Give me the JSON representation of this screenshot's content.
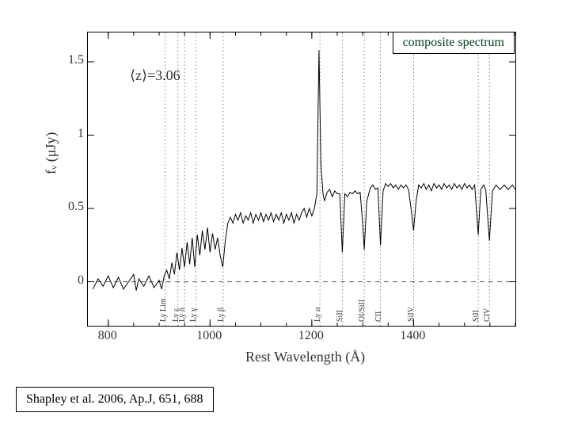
{
  "chart": {
    "type": "line",
    "title_box": "composite spectrum",
    "title_color": "#003e1f",
    "z_annotation": "⟨z⟩=3.06",
    "xlabel": "Rest Wavelength (Å)",
    "ylabel": "fᵥ  (μJy)",
    "xlim": [
      760,
      1600
    ],
    "ylim": [
      -0.3,
      1.7
    ],
    "xticks": [
      800,
      1000,
      1200,
      1400
    ],
    "yticks": [
      0,
      0.5,
      1,
      1.5
    ],
    "spectrum_color": "#000000",
    "grid_dashed_color": "#555555",
    "lineid_color": "#666666",
    "background_color": "#ffffff",
    "line_width": 1.0,
    "spectral_lines": [
      {
        "name": "Ly Lim",
        "x": 912
      },
      {
        "name": "Ly ε",
        "x": 937
      },
      {
        "name": "Ly δ",
        "x": 950
      },
      {
        "name": "Ly γ",
        "x": 972
      },
      {
        "name": "Ly β",
        "x": 1026
      },
      {
        "name": "Ly α",
        "x": 1216
      },
      {
        "name": "SiII",
        "x": 1260
      },
      {
        "name": "OI/SiII",
        "x": 1303
      },
      {
        "name": "CII",
        "x": 1335
      },
      {
        "name": "SiIV",
        "x": 1400
      },
      {
        "name": "SiII",
        "x": 1527
      },
      {
        "name": "CIV",
        "x": 1549
      }
    ],
    "spectrum": [
      [
        770,
        -0.05
      ],
      [
        780,
        0.02
      ],
      [
        790,
        -0.03
      ],
      [
        800,
        0.04
      ],
      [
        810,
        -0.04
      ],
      [
        820,
        0.03
      ],
      [
        830,
        -0.05
      ],
      [
        840,
        0.0
      ],
      [
        850,
        0.05
      ],
      [
        855,
        -0.06
      ],
      [
        860,
        0.02
      ],
      [
        870,
        -0.03
      ],
      [
        880,
        0.04
      ],
      [
        890,
        -0.04
      ],
      [
        900,
        0.01
      ],
      [
        905,
        -0.05
      ],
      [
        910,
        0.04
      ],
      [
        915,
        0.08
      ],
      [
        920,
        0.02
      ],
      [
        925,
        0.13
      ],
      [
        930,
        0.05
      ],
      [
        935,
        0.2
      ],
      [
        940,
        0.08
      ],
      [
        945,
        0.23
      ],
      [
        950,
        0.1
      ],
      [
        955,
        0.27
      ],
      [
        960,
        0.12
      ],
      [
        965,
        0.3
      ],
      [
        970,
        0.1
      ],
      [
        975,
        0.32
      ],
      [
        980,
        0.18
      ],
      [
        985,
        0.35
      ],
      [
        990,
        0.22
      ],
      [
        995,
        0.37
      ],
      [
        1000,
        0.2
      ],
      [
        1005,
        0.33
      ],
      [
        1010,
        0.22
      ],
      [
        1015,
        0.3
      ],
      [
        1020,
        0.18
      ],
      [
        1025,
        0.1
      ],
      [
        1030,
        0.28
      ],
      [
        1035,
        0.4
      ],
      [
        1040,
        0.44
      ],
      [
        1045,
        0.4
      ],
      [
        1050,
        0.46
      ],
      [
        1055,
        0.42
      ],
      [
        1060,
        0.47
      ],
      [
        1065,
        0.4
      ],
      [
        1070,
        0.45
      ],
      [
        1075,
        0.42
      ],
      [
        1080,
        0.47
      ],
      [
        1085,
        0.4
      ],
      [
        1090,
        0.46
      ],
      [
        1095,
        0.42
      ],
      [
        1100,
        0.47
      ],
      [
        1105,
        0.41
      ],
      [
        1110,
        0.46
      ],
      [
        1115,
        0.42
      ],
      [
        1120,
        0.47
      ],
      [
        1125,
        0.41
      ],
      [
        1130,
        0.46
      ],
      [
        1135,
        0.42
      ],
      [
        1140,
        0.47
      ],
      [
        1145,
        0.4
      ],
      [
        1150,
        0.46
      ],
      [
        1155,
        0.42
      ],
      [
        1160,
        0.47
      ],
      [
        1165,
        0.4
      ],
      [
        1170,
        0.46
      ],
      [
        1175,
        0.42
      ],
      [
        1180,
        0.47
      ],
      [
        1185,
        0.5
      ],
      [
        1190,
        0.44
      ],
      [
        1195,
        0.5
      ],
      [
        1200,
        0.45
      ],
      [
        1205,
        0.5
      ],
      [
        1210,
        0.6
      ],
      [
        1214,
        1.58
      ],
      [
        1218,
        0.8
      ],
      [
        1222,
        0.6
      ],
      [
        1225,
        0.55
      ],
      [
        1230,
        0.61
      ],
      [
        1235,
        0.63
      ],
      [
        1240,
        0.58
      ],
      [
        1245,
        0.62
      ],
      [
        1250,
        0.6
      ],
      [
        1255,
        0.6
      ],
      [
        1260,
        0.2
      ],
      [
        1265,
        0.6
      ],
      [
        1270,
        0.58
      ],
      [
        1275,
        0.61
      ],
      [
        1280,
        0.6
      ],
      [
        1285,
        0.62
      ],
      [
        1290,
        0.6
      ],
      [
        1295,
        0.61
      ],
      [
        1300,
        0.4
      ],
      [
        1303,
        0.22
      ],
      [
        1308,
        0.55
      ],
      [
        1315,
        0.64
      ],
      [
        1320,
        0.66
      ],
      [
        1325,
        0.63
      ],
      [
        1330,
        0.64
      ],
      [
        1335,
        0.25
      ],
      [
        1340,
        0.62
      ],
      [
        1345,
        0.67
      ],
      [
        1350,
        0.65
      ],
      [
        1355,
        0.67
      ],
      [
        1360,
        0.64
      ],
      [
        1365,
        0.66
      ],
      [
        1370,
        0.63
      ],
      [
        1375,
        0.66
      ],
      [
        1380,
        0.64
      ],
      [
        1385,
        0.66
      ],
      [
        1390,
        0.63
      ],
      [
        1395,
        0.5
      ],
      [
        1400,
        0.35
      ],
      [
        1405,
        0.55
      ],
      [
        1410,
        0.66
      ],
      [
        1415,
        0.64
      ],
      [
        1420,
        0.67
      ],
      [
        1425,
        0.63
      ],
      [
        1430,
        0.66
      ],
      [
        1435,
        0.62
      ],
      [
        1440,
        0.67
      ],
      [
        1445,
        0.64
      ],
      [
        1450,
        0.66
      ],
      [
        1455,
        0.63
      ],
      [
        1460,
        0.67
      ],
      [
        1465,
        0.64
      ],
      [
        1470,
        0.66
      ],
      [
        1475,
        0.63
      ],
      [
        1480,
        0.67
      ],
      [
        1485,
        0.64
      ],
      [
        1490,
        0.66
      ],
      [
        1495,
        0.63
      ],
      [
        1500,
        0.67
      ],
      [
        1505,
        0.64
      ],
      [
        1510,
        0.66
      ],
      [
        1515,
        0.63
      ],
      [
        1520,
        0.66
      ],
      [
        1527,
        0.32
      ],
      [
        1532,
        0.63
      ],
      [
        1538,
        0.66
      ],
      [
        1542,
        0.62
      ],
      [
        1549,
        0.28
      ],
      [
        1555,
        0.62
      ],
      [
        1562,
        0.66
      ],
      [
        1570,
        0.63
      ],
      [
        1578,
        0.66
      ],
      [
        1586,
        0.63
      ],
      [
        1594,
        0.66
      ],
      [
        1600,
        0.63
      ]
    ]
  },
  "citation": "Shapley et al. 2006, Ap.J, 651, 688"
}
